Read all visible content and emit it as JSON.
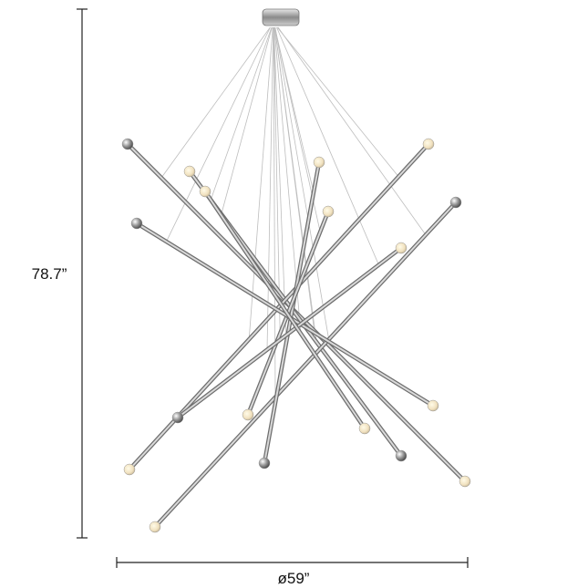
{
  "dimensions": {
    "height": "78.7”",
    "diameter": "ø59”"
  }
}
